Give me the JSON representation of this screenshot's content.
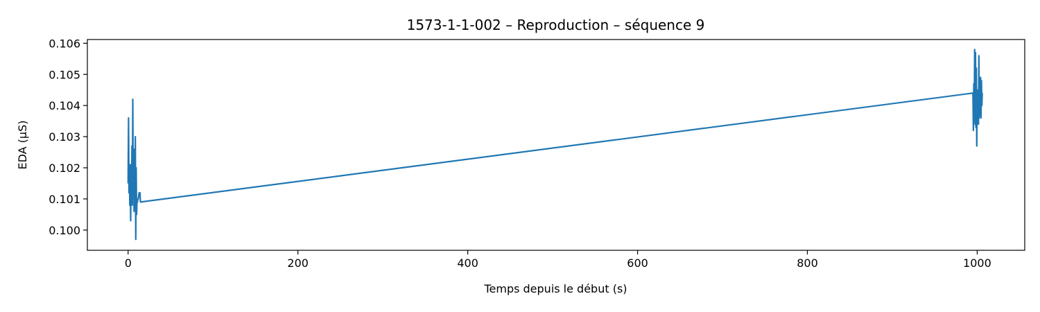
{
  "chart_data": {
    "type": "line",
    "title": "1573-1-1-002 – Reproduction – séquence 9",
    "xlabel": "Temps depuis le début (s)",
    "ylabel": "EDA (µS)",
    "xlim": [
      -48,
      1056
    ],
    "ylim": [
      0.09935,
      0.10612
    ],
    "xticks": [
      0,
      200,
      400,
      600,
      800,
      1000
    ],
    "xtick_labels": [
      "0",
      "200",
      "400",
      "600",
      "800",
      "1000"
    ],
    "yticks": [
      0.1,
      0.101,
      0.102,
      0.103,
      0.104,
      0.105,
      0.106
    ],
    "ytick_labels": [
      "0.100",
      "0.101",
      "0.102",
      "0.103",
      "0.104",
      "0.105",
      "0.106"
    ],
    "grid": false,
    "series": [
      {
        "color": "#1f77b4",
        "x": [
          0.0,
          0.5,
          1.0,
          1.5,
          2.0,
          2.5,
          3.0,
          3.5,
          4.0,
          4.5,
          5.0,
          5.5,
          6.0,
          6.5,
          7.0,
          7.5,
          8.0,
          8.5,
          9.0,
          9.5,
          10.0,
          10.5,
          11.0,
          11.5,
          12.0,
          12.5,
          13.0,
          13.5,
          14.0,
          14.5,
          995.0,
          995.5,
          996.0,
          996.5,
          997.0,
          997.5,
          998.0,
          998.5,
          999.0,
          999.5,
          1000.0,
          1000.5,
          1001.0,
          1001.5,
          1002.0,
          1002.5,
          1003.0,
          1003.5,
          1004.0,
          1004.5,
          1005.0,
          1005.5,
          1006.0
        ],
        "y": [
          0.1015,
          0.1036,
          0.1012,
          0.1019,
          0.1008,
          0.1021,
          0.1003,
          0.1018,
          0.1011,
          0.1027,
          0.1008,
          0.1042,
          0.1015,
          0.1024,
          0.1006,
          0.1026,
          0.1013,
          0.103,
          0.0997,
          0.102,
          0.1005,
          0.101,
          0.1009,
          0.101,
          0.101,
          0.1011,
          0.1012,
          0.1012,
          0.1012,
          0.1009,
          0.1044,
          0.1032,
          0.1047,
          0.1036,
          0.1058,
          0.1034,
          0.1057,
          0.1033,
          0.1052,
          0.1027,
          0.1045,
          0.1035,
          0.1042,
          0.1034,
          0.1056,
          0.1036,
          0.1045,
          0.1037,
          0.1049,
          0.1036,
          0.1048,
          0.104,
          0.1044
        ]
      }
    ]
  }
}
